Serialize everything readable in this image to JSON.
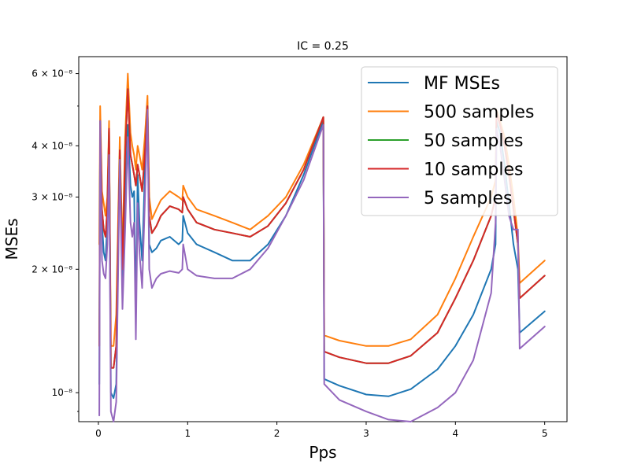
{
  "chart_data": {
    "type": "line",
    "title": "IC = 0.25",
    "xlabel": "Pps",
    "ylabel": "MSEs",
    "xlim": [
      -0.22,
      5.25
    ],
    "ylim": [
      8.5e-09,
      6.6e-08
    ],
    "yscale": "log",
    "grid": false,
    "legend_position": "top-right",
    "x_ticks": [
      {
        "value": 0,
        "label": "0"
      },
      {
        "value": 1,
        "label": "1"
      },
      {
        "value": 2,
        "label": "2"
      },
      {
        "value": 3,
        "label": "3"
      },
      {
        "value": 4,
        "label": "4"
      },
      {
        "value": 5,
        "label": "5"
      }
    ],
    "y_major_ticks": [
      {
        "value": 1e-08,
        "label": "10⁻⁸"
      },
      {
        "value": 2e-08,
        "label": "2 × 10⁻⁸"
      },
      {
        "value": 3e-08,
        "label": "3 × 10⁻⁸"
      },
      {
        "value": 4e-08,
        "label": "4 × 10⁻⁸"
      },
      {
        "value": 6e-08,
        "label": "6 × 10⁻⁸"
      }
    ],
    "y_minor_ticks": [
      9e-09,
      5e-08
    ],
    "series": [
      {
        "name": "MF MSEs",
        "color": "#1f77b4",
        "x": [
          0.01,
          0.02,
          0.04,
          0.06,
          0.08,
          0.1,
          0.12,
          0.14,
          0.17,
          0.2,
          0.24,
          0.27,
          0.3,
          0.33,
          0.36,
          0.38,
          0.4,
          0.42,
          0.44,
          0.46,
          0.49,
          0.52,
          0.55,
          0.57,
          0.6,
          0.65,
          0.7,
          0.8,
          0.9,
          0.94,
          0.95,
          1.0,
          1.1,
          1.3,
          1.5,
          1.7,
          1.9,
          2.1,
          2.3,
          2.52,
          2.53,
          2.7,
          3.0,
          3.25,
          3.5,
          3.8,
          4.0,
          4.2,
          4.4,
          4.45,
          4.46,
          4.5,
          4.55,
          4.6,
          4.65,
          4.7,
          4.72,
          5.0
        ],
        "y": [
          1.05e-08,
          4.6e-08,
          2.6e-08,
          2.2e-08,
          2.1e-08,
          2.6e-08,
          4.4e-08,
          1e-08,
          9.7e-09,
          1.05e-08,
          4e-08,
          1.8e-08,
          3e-08,
          4.5e-08,
          3.2e-08,
          3e-08,
          3.1e-08,
          1.55e-08,
          3.4e-08,
          2.6e-08,
          2.1e-08,
          3.4e-08,
          5.1e-08,
          2.3e-08,
          2.2e-08,
          2.25e-08,
          2.35e-08,
          2.4e-08,
          2.3e-08,
          2.35e-08,
          2.7e-08,
          2.45e-08,
          2.3e-08,
          2.2e-08,
          2.1e-08,
          2.1e-08,
          2.3e-08,
          2.7e-08,
          3.4e-08,
          4.6e-08,
          1.08e-08,
          1.04e-08,
          9.9e-09,
          9.8e-09,
          1.02e-08,
          1.14e-08,
          1.3e-08,
          1.55e-08,
          2e-08,
          2.3e-08,
          4.6e-08,
          4.3e-08,
          3.6e-08,
          2.9e-08,
          2.3e-08,
          2e-08,
          1.4e-08,
          1.58e-08
        ]
      },
      {
        "name": "500 samples",
        "color": "#ff7f0e",
        "x": [
          0.01,
          0.02,
          0.04,
          0.06,
          0.08,
          0.1,
          0.12,
          0.14,
          0.17,
          0.2,
          0.24,
          0.27,
          0.3,
          0.33,
          0.36,
          0.38,
          0.4,
          0.42,
          0.44,
          0.46,
          0.49,
          0.52,
          0.55,
          0.57,
          0.6,
          0.65,
          0.7,
          0.8,
          0.9,
          0.94,
          0.95,
          1.0,
          1.1,
          1.3,
          1.5,
          1.7,
          1.9,
          2.1,
          2.3,
          2.52,
          2.53,
          2.7,
          3.0,
          3.25,
          3.5,
          3.8,
          4.0,
          4.2,
          4.4,
          4.45,
          4.46,
          4.5,
          4.55,
          4.6,
          4.65,
          4.7,
          4.72,
          5.0
        ],
        "y": [
          2.3e-08,
          5e-08,
          3.1e-08,
          2.9e-08,
          2.7e-08,
          3e-08,
          4.6e-08,
          1.3e-08,
          1.3e-08,
          1.55e-08,
          4.2e-08,
          2.2e-08,
          4.2e-08,
          6e-08,
          4.3e-08,
          4e-08,
          3.8e-08,
          3.5e-08,
          4e-08,
          3.8e-08,
          3.5e-08,
          4.2e-08,
          5.3e-08,
          3e-08,
          2.65e-08,
          2.8e-08,
          2.95e-08,
          3.1e-08,
          3e-08,
          2.95e-08,
          3.2e-08,
          3e-08,
          2.8e-08,
          2.7e-08,
          2.6e-08,
          2.5e-08,
          2.7e-08,
          3e-08,
          3.6e-08,
          4.7e-08,
          1.38e-08,
          1.34e-08,
          1.3e-08,
          1.3e-08,
          1.35e-08,
          1.55e-08,
          1.9e-08,
          2.4e-08,
          3e-08,
          3.3e-08,
          4.9e-08,
          4.6e-08,
          4.2e-08,
          3.6e-08,
          3e-08,
          2.4e-08,
          1.85e-08,
          2.1e-08
        ]
      },
      {
        "name": "50 samples",
        "color": "#2ca02c",
        "x": [
          0.01,
          0.02,
          0.04,
          0.06,
          0.08,
          0.1,
          0.12,
          0.14,
          0.17,
          0.2,
          0.24,
          0.27,
          0.3,
          0.33,
          0.36,
          0.38,
          0.4,
          0.42,
          0.44,
          0.46,
          0.49,
          0.52,
          0.55,
          0.57,
          0.6,
          0.65,
          0.7,
          0.8,
          0.9,
          0.94,
          0.95,
          1.0,
          1.1,
          1.3,
          1.5,
          1.7,
          1.9,
          2.1,
          2.3,
          2.52,
          2.53,
          2.7,
          3.0,
          3.25,
          3.5,
          3.8,
          4.0,
          4.2,
          4.4,
          4.45,
          4.46,
          4.5,
          4.55,
          4.6,
          4.65,
          4.7,
          4.72,
          5.0
        ],
        "y": [
          1.3e-08,
          4.6e-08,
          2.8e-08,
          2.5e-08,
          2.4e-08,
          2.8e-08,
          4.4e-08,
          1.15e-08,
          1.15e-08,
          1.3e-08,
          3.9e-08,
          2e-08,
          3.8e-08,
          5.5e-08,
          3.8e-08,
          3.6e-08,
          3.4e-08,
          3.2e-08,
          3.6e-08,
          3.4e-08,
          3.1e-08,
          3.8e-08,
          5e-08,
          2.7e-08,
          2.45e-08,
          2.55e-08,
          2.7e-08,
          2.85e-08,
          2.8e-08,
          2.75e-08,
          3e-08,
          2.8e-08,
          2.6e-08,
          2.5e-08,
          2.45e-08,
          2.4e-08,
          2.55e-08,
          2.9e-08,
          3.5e-08,
          4.7e-08,
          1.26e-08,
          1.22e-08,
          1.18e-08,
          1.18e-08,
          1.23e-08,
          1.4e-08,
          1.7e-08,
          2.1e-08,
          2.7e-08,
          3e-08,
          4.8e-08,
          4.5e-08,
          4e-08,
          3.4e-08,
          2.8e-08,
          2.3e-08,
          1.7e-08,
          1.93e-08
        ]
      },
      {
        "name": "10 samples",
        "color": "#d62728",
        "x": [
          0.01,
          0.02,
          0.04,
          0.06,
          0.08,
          0.1,
          0.12,
          0.14,
          0.17,
          0.2,
          0.24,
          0.27,
          0.3,
          0.33,
          0.36,
          0.38,
          0.4,
          0.42,
          0.44,
          0.46,
          0.49,
          0.52,
          0.55,
          0.57,
          0.6,
          0.65,
          0.7,
          0.8,
          0.9,
          0.94,
          0.95,
          1.0,
          1.1,
          1.3,
          1.5,
          1.7,
          1.9,
          2.1,
          2.3,
          2.52,
          2.53,
          2.7,
          3.0,
          3.25,
          3.5,
          3.8,
          4.0,
          4.2,
          4.4,
          4.45,
          4.46,
          4.5,
          4.55,
          4.6,
          4.65,
          4.7,
          4.72,
          5.0
        ],
        "y": [
          1.3e-08,
          4.6e-08,
          2.8e-08,
          2.5e-08,
          2.4e-08,
          2.8e-08,
          4.4e-08,
          1.15e-08,
          1.15e-08,
          1.3e-08,
          3.9e-08,
          2e-08,
          3.8e-08,
          5.5e-08,
          3.8e-08,
          3.6e-08,
          3.4e-08,
          3.2e-08,
          3.6e-08,
          3.4e-08,
          3.1e-08,
          3.8e-08,
          5e-08,
          2.7e-08,
          2.45e-08,
          2.55e-08,
          2.7e-08,
          2.85e-08,
          2.8e-08,
          2.75e-08,
          3e-08,
          2.8e-08,
          2.6e-08,
          2.5e-08,
          2.45e-08,
          2.4e-08,
          2.55e-08,
          2.9e-08,
          3.5e-08,
          4.7e-08,
          1.26e-08,
          1.22e-08,
          1.18e-08,
          1.18e-08,
          1.23e-08,
          1.4e-08,
          1.7e-08,
          2.1e-08,
          2.7e-08,
          3e-08,
          4.8e-08,
          4.5e-08,
          4e-08,
          3.4e-08,
          2.8e-08,
          2.3e-08,
          1.7e-08,
          1.93e-08
        ]
      },
      {
        "name": "5 samples",
        "color": "#9467bd",
        "x": [
          0.01,
          0.02,
          0.04,
          0.06,
          0.08,
          0.1,
          0.12,
          0.14,
          0.17,
          0.2,
          0.24,
          0.27,
          0.3,
          0.33,
          0.36,
          0.38,
          0.4,
          0.42,
          0.44,
          0.46,
          0.49,
          0.52,
          0.55,
          0.57,
          0.6,
          0.65,
          0.7,
          0.8,
          0.9,
          0.94,
          0.95,
          1.0,
          1.1,
          1.3,
          1.5,
          1.7,
          1.9,
          2.1,
          2.3,
          2.52,
          2.53,
          2.7,
          3.0,
          3.25,
          3.5,
          3.8,
          4.0,
          4.2,
          4.4,
          4.45,
          4.46,
          4.5,
          4.55,
          4.6,
          4.65,
          4.7,
          4.72,
          5.0
        ],
        "y": [
          8.8e-09,
          4.6e-08,
          2.1e-08,
          1.95e-08,
          1.9e-08,
          2.3e-08,
          3.8e-08,
          9e-09,
          8.5e-09,
          9.5e-09,
          3.7e-08,
          1.6e-08,
          2.5e-08,
          4.2e-08,
          2.6e-08,
          2.4e-08,
          2.6e-08,
          1.35e-08,
          2.9e-08,
          2.2e-08,
          1.8e-08,
          2.9e-08,
          4.9e-08,
          2e-08,
          1.8e-08,
          1.9e-08,
          1.95e-08,
          1.98e-08,
          1.96e-08,
          2e-08,
          2.3e-08,
          2e-08,
          1.93e-08,
          1.9e-08,
          1.9e-08,
          2e-08,
          2.25e-08,
          2.7e-08,
          3.3e-08,
          4.5e-08,
          1.05e-08,
          9.6e-09,
          9e-09,
          8.6e-09,
          8.5e-09,
          9.2e-09,
          1e-08,
          1.2e-08,
          1.75e-08,
          2.6e-08,
          4.4e-08,
          4e-08,
          3.3e-08,
          2.7e-08,
          2.5e-08,
          2.5e-08,
          1.28e-08,
          1.45e-08
        ]
      }
    ]
  }
}
